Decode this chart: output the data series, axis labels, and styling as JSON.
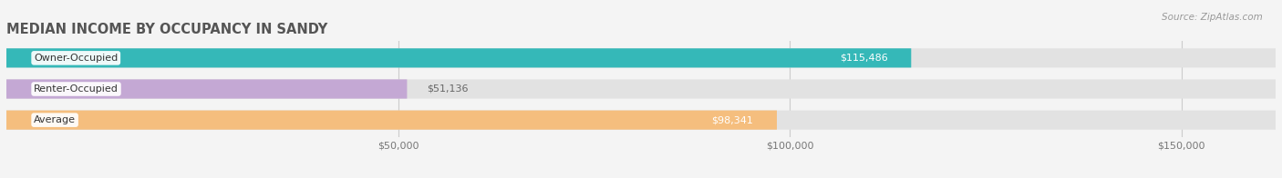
{
  "title": "MEDIAN INCOME BY OCCUPANCY IN SANDY",
  "source": "Source: ZipAtlas.com",
  "categories": [
    "Owner-Occupied",
    "Renter-Occupied",
    "Average"
  ],
  "values": [
    115486,
    51136,
    98341
  ],
  "labels": [
    "$115,486",
    "$51,136",
    "$98,341"
  ],
  "bar_colors": [
    "#35b8b8",
    "#c4a8d4",
    "#f5be7e"
  ],
  "xlim": [
    0,
    162000
  ],
  "xticks": [
    50000,
    100000,
    150000
  ],
  "xtick_labels": [
    "$50,000",
    "$100,000",
    "$150,000"
  ],
  "bg_color": "#f4f4f4",
  "bar_bg_color": "#e2e2e2",
  "title_color": "#555555",
  "source_color": "#999999",
  "label_color_inside": "#ffffff",
  "label_color_outside": "#666666",
  "bar_height": 0.62,
  "label_inside_threshold": 80000
}
